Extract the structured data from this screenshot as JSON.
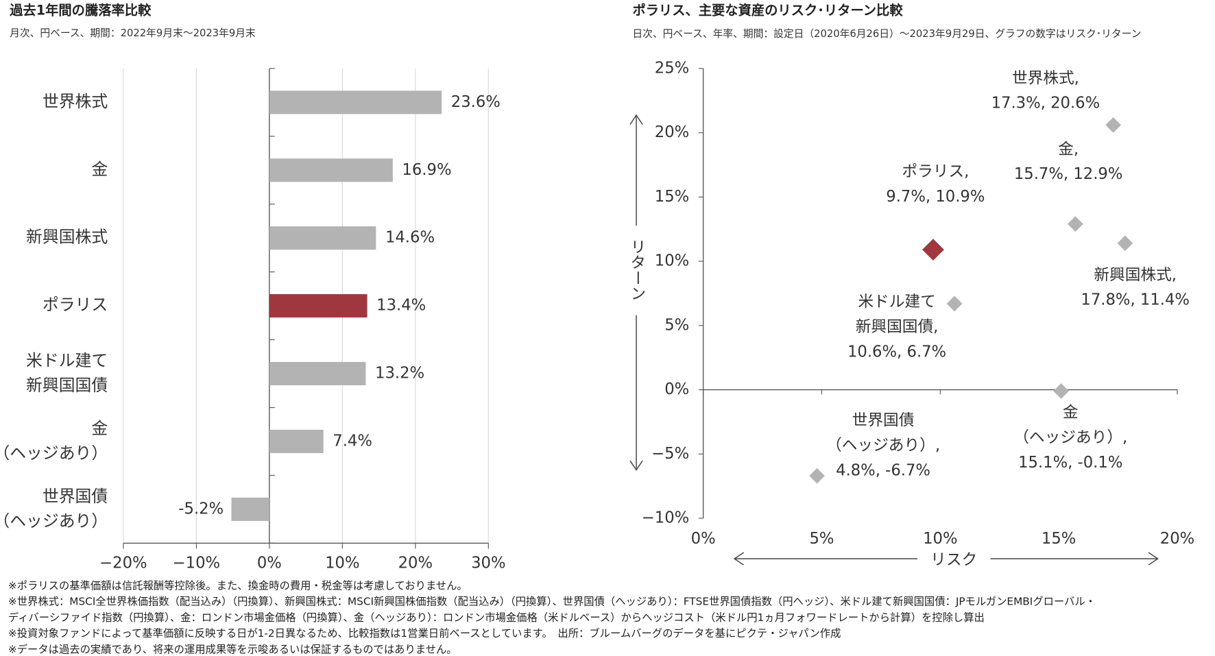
{
  "chart_data": [
    {
      "type": "barh",
      "title": "過去1年間の騰落率比較",
      "subtitle": "月次、円ベース、期間：2022年9月末～2023年9月末",
      "categories": [
        "世界株式",
        "金",
        "新興国株式",
        "ポラリス",
        "米ドル建て\n新興国国債",
        "金\n（ヘッジあり）",
        "世界国債\n（ヘッジあり）"
      ],
      "values": [
        23.6,
        16.9,
        14.6,
        13.4,
        13.2,
        7.4,
        -5.2
      ],
      "value_labels": [
        "23.6%",
        "16.9%",
        "14.6%",
        "13.4%",
        "13.2%",
        "7.4%",
        "-5.2%"
      ],
      "colors": [
        "#b3b3b3",
        "#b3b3b3",
        "#b3b3b3",
        "#a0373f",
        "#b3b3b3",
        "#b3b3b3",
        "#b3b3b3"
      ],
      "xlim": [
        -20,
        30
      ],
      "xticks": [
        {
          "value": -20,
          "label": "−20%"
        },
        {
          "value": -10,
          "label": "−10%"
        },
        {
          "value": 0,
          "label": "0%"
        },
        {
          "value": 10,
          "label": "10%"
        },
        {
          "value": 20,
          "label": "20%"
        },
        {
          "value": 30,
          "label": "30%"
        }
      ],
      "grid": true
    },
    {
      "type": "scatter",
      "title": "ポラリス、主要な資産のリスク･リターン比較",
      "subtitle": "日次、円ベース、年率、期間：設定日（2020年6月26日）～2023年9月29日、グラフの数字はリスク･リターン",
      "x": [
        17.3,
        15.7,
        9.7,
        17.8,
        10.6,
        15.1,
        4.8
      ],
      "values": [
        20.6,
        12.9,
        10.9,
        11.4,
        6.7,
        -0.1,
        -6.7
      ],
      "labels": [
        "世界株式,\n17.3%, 20.6%",
        "金,\n15.7%, 12.9%",
        "ポラリス,\n9.7%, 10.9%",
        "新興国株式,\n17.8%, 11.4%",
        "米ドル建て\n新興国国債,\n10.6%, 6.7%",
        "金\n（ヘッジあり）,\n15.1%, -0.1%",
        "世界国債\n（ヘッジあり）,\n4.8%, -6.7%"
      ],
      "colors": [
        "#b3b3b3",
        "#b3b3b3",
        "#a0373f",
        "#b3b3b3",
        "#b3b3b3",
        "#b3b3b3",
        "#b3b3b3"
      ],
      "xlabel": "リスク",
      "ylabel": "リターン",
      "xlim": [
        0,
        20
      ],
      "xticks": [
        {
          "value": 0,
          "label": "0%"
        },
        {
          "value": 5,
          "label": "5%"
        },
        {
          "value": 10,
          "label": "10%"
        },
        {
          "value": 15,
          "label": "15%"
        },
        {
          "value": 20,
          "label": "20%"
        }
      ],
      "ylim": [
        -10,
        25
      ],
      "yticks": [
        {
          "value": -10,
          "label": "−10%"
        },
        {
          "value": -5,
          "label": "−5%"
        },
        {
          "value": 0,
          "label": "0%"
        },
        {
          "value": 5,
          "label": "5%"
        },
        {
          "value": 10,
          "label": "10%"
        },
        {
          "value": 15,
          "label": "15%"
        },
        {
          "value": 20,
          "label": "20%"
        },
        {
          "value": 25,
          "label": "25%"
        }
      ]
    }
  ],
  "footnotes": [
    "※ポラリスの基準価額は信託報酬等控除後。また、換金時の費用・税金等は考慮しておりません。",
    "※世界株式：MSCI全世界株価指数（配当込み）（円換算）、新興国株式：MSCI新興国株価指数（配当込み）（円換算）、世界国債（ヘッジあり）：FTSE世界国債指数（円ヘッジ）、米ドル建て新興国国債：JPモルガンEMBIグローバル・",
    "ディバーシファイド指数（円換算）、金：ロンドン市場金価格（円換算）、金（ヘッジあり）：ロンドン市場金価格（米ドルベース）からヘッジコスト（米ドル円1ヵ月フォワードレートから計算）を控除し算出",
    "※投資対象ファンドによって基準価額に反映する日が1-2日異なるため、比較指数は1営業日前ベースとしています。　出所：ブルームバーグのデータを基にピクテ・ジャパン作成",
    "※データは過去の実績であり、将来の運用成果等を示唆あるいは保証するものではありません。"
  ]
}
